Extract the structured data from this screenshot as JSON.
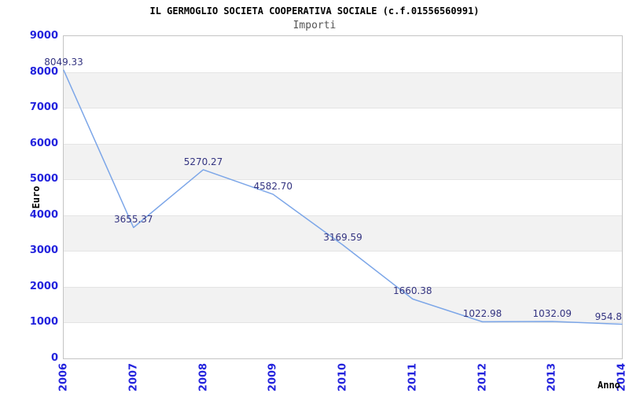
{
  "chart_data": {
    "type": "line",
    "title": "IL GERMOGLIO SOCIETA COOPERATIVA SOCIALE (c.f.01556560991)",
    "subtitle": "Importi",
    "xlabel": "Anno",
    "ylabel": "Euro",
    "x": [
      "2006",
      "2007",
      "2008",
      "2009",
      "2010",
      "2011",
      "2012",
      "2013",
      "2014"
    ],
    "values": [
      8049.33,
      3655.37,
      5270.27,
      4582.7,
      3169.59,
      1660.38,
      1022.98,
      1032.09,
      954.8
    ],
    "point_labels": [
      "8049.33",
      "3655.37",
      "5270.27",
      "4582.70",
      "3169.59",
      "1660.38",
      "1022.98",
      "1032.09",
      "954.8"
    ],
    "ylim": [
      0,
      9000
    ],
    "yticks": [
      0,
      1000,
      2000,
      3000,
      4000,
      5000,
      6000,
      7000,
      8000,
      9000
    ],
    "grid": true,
    "legend": false,
    "background_bands": "alternating horizontal, gray on 1000-2000 / 3000-4000 / 5000-6000 / 7000-8000",
    "colors": {
      "line": "#7ca6e8",
      "tick_labels": "#2323dd",
      "point_labels": "#333380",
      "band": "#f2f2f2",
      "gridline": "#e4e4e4",
      "plot_border": "#c4c4c4",
      "title": "#000000",
      "subtitle": "#555555",
      "background": "#ffffff"
    }
  }
}
